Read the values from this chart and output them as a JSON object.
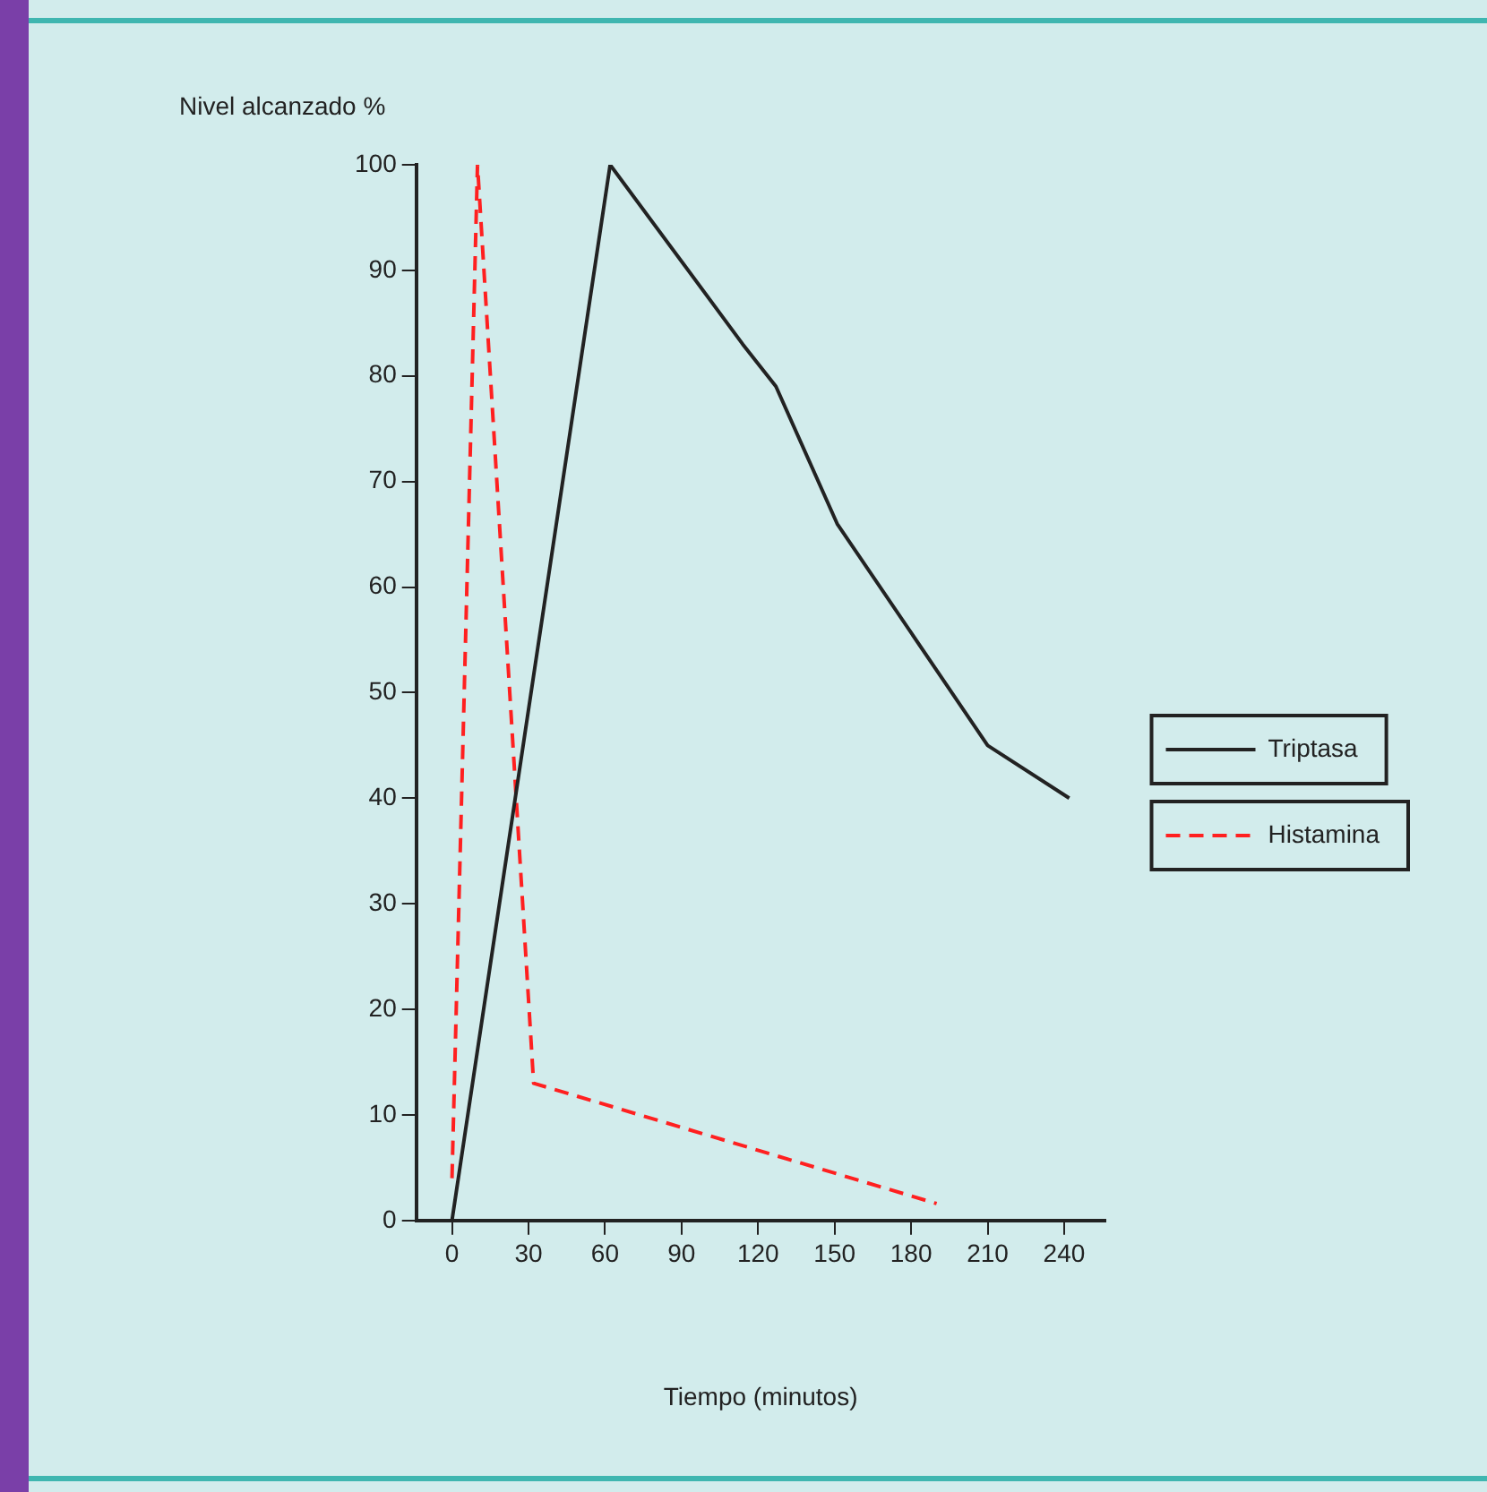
{
  "chart_data": {
    "type": "line",
    "ylabel": "Nivel alcanzado %",
    "xlabel": "Tiempo (minutos)",
    "series": [
      {
        "name": "Triptasa",
        "color": "#222222",
        "line_style": "solid",
        "x": [
          0,
          62,
          114,
          127,
          151,
          210,
          242
        ],
        "values": [
          0,
          100,
          83,
          79,
          66,
          45,
          40
        ]
      },
      {
        "name": "Histamina",
        "color": "#ff2020",
        "line_style": "dashed",
        "x": [
          0,
          10,
          32,
          190
        ],
        "values": [
          4,
          100,
          13,
          1.6
        ]
      }
    ],
    "xlim": [
      -14,
      256
    ],
    "xticks": [
      0,
      30,
      60,
      90,
      120,
      150,
      180,
      210,
      240
    ],
    "ylim": [
      0,
      100
    ],
    "yticks": [
      0,
      10,
      20,
      30,
      40,
      50,
      60,
      70,
      80,
      90,
      100
    ],
    "grid": false,
    "legend": "right",
    "marker": "none"
  }
}
